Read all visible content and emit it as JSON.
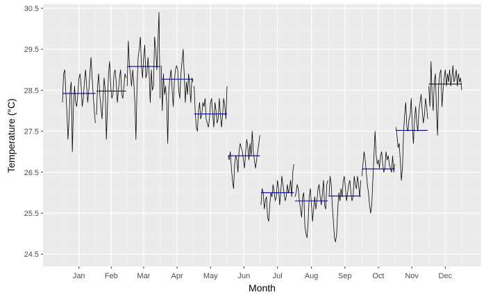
{
  "chart_data": {
    "type": "line",
    "title": "",
    "xlabel": "Month",
    "ylabel": "Temperature (°C)",
    "ylim": [
      24.2,
      30.6
    ],
    "y_ticks": [
      24.5,
      25.5,
      26.5,
      27.5,
      28.5,
      29.5,
      30.5
    ],
    "grid": true,
    "legend": "none",
    "categories": [
      "Jan",
      "Feb",
      "Mar",
      "Apr",
      "May",
      "Jun",
      "Jul",
      "Aug",
      "Sep",
      "Oct",
      "Nov",
      "Dec"
    ],
    "series": [
      {
        "kind": "daily",
        "color": "#000000",
        "values": [
          [
            28.2,
            28.9,
            29.0,
            28.5,
            28.0,
            27.3,
            27.8,
            28.5,
            28.7,
            27.0,
            28.1,
            28.6,
            28.2,
            28.1,
            28.4,
            28.8,
            28.9,
            28.6,
            28.1,
            28.3,
            28.7,
            29.0,
            28.6,
            28.2,
            28.5,
            28.9,
            29.3,
            28.8,
            28.4,
            28.0,
            27.7
          ],
          [
            27.9,
            28.6,
            28.9,
            28.4,
            28.1,
            27.8,
            28.3,
            28.8,
            28.5,
            27.3,
            28.1,
            28.9,
            29.2,
            28.6,
            28.3,
            28.4,
            28.9,
            29.0,
            28.7,
            28.2,
            28.5,
            28.8,
            29.0,
            28.4,
            28.3,
            28.6,
            28.9,
            28.8
          ],
          [
            28.6,
            29.7,
            29.1,
            28.9,
            28.6,
            29.0,
            28.7,
            28.2,
            27.3,
            28.6,
            29.3,
            29.5,
            29.8,
            29.1,
            28.8,
            29.3,
            29.6,
            28.8,
            28.9,
            29.3,
            28.9,
            28.2,
            29.0,
            28.5,
            28.6,
            29.8,
            29.5,
            29.0,
            29.6,
            30.4,
            28.3
          ],
          [
            29.1,
            28.0,
            28.9,
            28.4,
            28.6,
            28.2,
            27.2,
            28.5,
            28.8,
            29.0,
            28.5,
            28.1,
            28.7,
            29.0,
            29.1,
            29.0,
            28.5,
            28.3,
            28.9,
            29.2,
            29.5,
            28.9,
            28.2,
            28.7,
            28.4,
            28.9,
            28.6,
            28.2,
            28.8,
            28.7
          ],
          [
            28.6,
            28.0,
            27.6,
            27.5,
            28.0,
            28.2,
            27.8,
            27.9,
            28.2,
            28.1,
            28.3,
            27.8,
            27.7,
            27.6,
            27.8,
            28.2,
            28.3,
            27.9,
            27.6,
            28.2,
            28.0,
            27.7,
            27.8,
            28.3,
            27.9,
            27.6,
            27.9,
            28.3,
            28.1,
            27.8,
            28.6
          ],
          [
            26.9,
            26.8,
            27.0,
            26.6,
            26.3,
            26.1,
            26.7,
            26.9,
            26.8,
            26.5,
            27.0,
            27.2,
            27.1,
            27.0,
            26.8,
            26.6,
            27.0,
            27.3,
            27.1,
            26.8,
            27.2,
            26.9,
            27.5,
            27.0,
            26.8,
            26.6,
            26.8,
            27.0,
            27.2,
            27.4
          ],
          [
            25.7,
            26.1,
            26.0,
            25.6,
            25.8,
            25.9,
            25.4,
            25.3,
            25.7,
            26.0,
            25.9,
            26.2,
            26.0,
            25.8,
            25.9,
            26.3,
            26.1,
            25.7,
            26.0,
            26.4,
            26.2,
            26.0,
            25.8,
            25.9,
            26.2,
            26.0,
            26.1,
            26.3,
            25.9,
            26.5,
            26.7
          ],
          [
            25.9,
            26.0,
            26.2,
            26.1,
            25.8,
            25.6,
            25.4,
            25.9,
            26.0,
            25.2,
            25.0,
            24.9,
            25.3,
            25.9,
            26.1,
            25.7,
            25.3,
            25.6,
            25.9,
            25.6,
            25.8,
            26.1,
            26.2,
            25.9,
            25.7,
            26.0,
            26.3,
            25.7,
            25.6,
            26.2,
            26.3
          ],
          [
            25.9,
            26.4,
            26.2,
            25.7,
            25.3,
            24.9,
            24.8,
            25.0,
            25.6,
            26.0,
            25.8,
            26.1,
            25.9,
            26.3,
            26.4,
            26.1,
            25.8,
            26.0,
            26.2,
            26.3,
            26.0,
            25.8,
            25.9,
            26.4,
            26.2,
            26.1,
            26.4,
            26.2,
            25.9,
            26.3
          ],
          [
            26.4,
            26.7,
            27.0,
            26.8,
            26.5,
            26.2,
            26.0,
            25.7,
            25.5,
            25.7,
            26.3,
            26.9,
            27.5,
            26.9,
            26.7,
            26.8,
            26.6,
            26.9,
            27.0,
            26.7,
            26.5,
            26.6,
            27.0,
            26.8,
            26.9,
            26.7,
            26.6,
            26.5,
            26.9,
            26.5,
            26.7
          ],
          [
            27.6,
            27.4,
            27.1,
            27.2,
            26.8,
            26.3,
            26.6,
            27.5,
            27.9,
            28.2,
            27.6,
            27.5,
            27.8,
            27.9,
            28.3,
            27.6,
            27.2,
            27.8,
            28.1,
            27.7,
            27.5,
            28.0,
            28.2,
            28.4,
            28.0,
            27.7,
            27.9,
            28.3,
            28.1,
            27.8
          ],
          [
            28.6,
            28.1,
            29.2,
            28.4,
            28.0,
            28.7,
            28.9,
            28.0,
            27.4,
            28.6,
            28.9,
            29.0,
            28.1,
            28.5,
            28.8,
            29.0,
            28.6,
            28.9,
            28.7,
            29.0,
            28.6,
            28.8,
            29.1,
            28.7,
            28.8,
            29.0,
            28.6,
            28.9,
            28.7,
            28.8,
            28.5
          ]
        ]
      },
      {
        "kind": "monthly-mean",
        "color": "#00008b",
        "values": [
          28.42,
          28.48,
          29.08,
          28.77,
          27.92,
          26.9,
          26.0,
          25.8,
          25.92,
          26.58,
          27.52,
          28.65
        ]
      }
    ]
  }
}
